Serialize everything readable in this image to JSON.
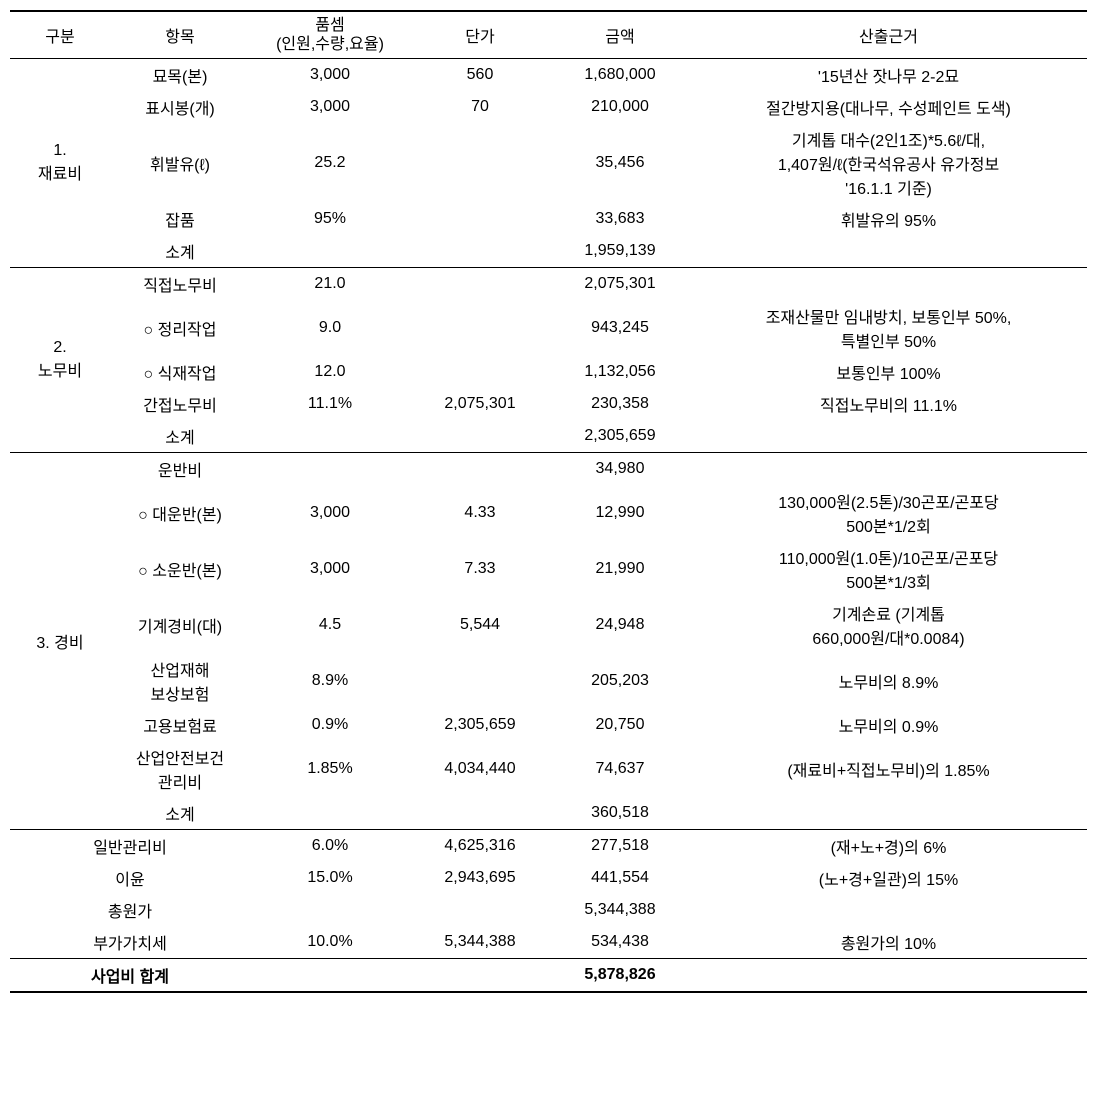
{
  "headers": {
    "category": "구분",
    "item": "항목",
    "qty_line1": "품셈",
    "qty_line2": "(인원,수량,요율)",
    "unit": "단가",
    "amount": "금액",
    "basis": "산출근거"
  },
  "sections": [
    {
      "categoryLabel": "1.\n재료비",
      "rows": [
        {
          "item": "묘목(본)",
          "qty": "3,000",
          "unit": "560",
          "amount": "1,680,000",
          "basis": "'15년산 잣나무 2-2묘"
        },
        {
          "item": "표시봉(개)",
          "qty": "3,000",
          "unit": "70",
          "amount": "210,000",
          "basis": "절간방지용(대나무, 수성페인트 도색)"
        },
        {
          "item": "휘발유(ℓ)",
          "qty": "25.2",
          "unit": "",
          "amount": "35,456",
          "basis": "기계톱 대수(2인1조)*5.6ℓ/대,\n1,407원/ℓ(한국석유공사 유가정보\n'16.1.1 기준)"
        },
        {
          "item": "잡품",
          "qty": "95%",
          "unit": "",
          "amount": "33,683",
          "basis": "휘발유의 95%"
        },
        {
          "item": "소계",
          "qty": "",
          "unit": "",
          "amount": "1,959,139",
          "basis": ""
        }
      ]
    },
    {
      "categoryLabel": "2.\n노무비",
      "rows": [
        {
          "item": "직접노무비",
          "qty": "21.0",
          "unit": "",
          "amount": "2,075,301",
          "basis": ""
        },
        {
          "item": "○ 정리작업",
          "qty": "9.0",
          "unit": "",
          "amount": "943,245",
          "basis": "조재산물만 임내방치, 보통인부 50%,\n특별인부 50%"
        },
        {
          "item": "○ 식재작업",
          "qty": "12.0",
          "unit": "",
          "amount": "1,132,056",
          "basis": "보통인부 100%"
        },
        {
          "item": "간접노무비",
          "qty": "11.1%",
          "unit": "2,075,301",
          "amount": "230,358",
          "basis": "직접노무비의 11.1%"
        },
        {
          "item": "소계",
          "qty": "",
          "unit": "",
          "amount": "2,305,659",
          "basis": ""
        }
      ]
    },
    {
      "categoryLabel": "3. 경비",
      "rows": [
        {
          "item": "운반비",
          "qty": "",
          "unit": "",
          "amount": "34,980",
          "basis": ""
        },
        {
          "item": "○ 대운반(본)",
          "qty": "3,000",
          "unit": "4.33",
          "amount": "12,990",
          "basis": "130,000원(2.5톤)/30곤포/곤포당\n500본*1/2회"
        },
        {
          "item": "○ 소운반(본)",
          "qty": "3,000",
          "unit": "7.33",
          "amount": "21,990",
          "basis": "110,000원(1.0톤)/10곤포/곤포당\n500본*1/3회"
        },
        {
          "item": "기계경비(대)",
          "qty": "4.5",
          "unit": "5,544",
          "amount": "24,948",
          "basis": "기계손료 (기계톱\n660,000원/대*0.0084)"
        },
        {
          "item": "산업재해\n보상보험",
          "qty": "8.9%",
          "unit": "2,305,659",
          "amount": "205,203",
          "basis": "노무비의 8.9%"
        },
        {
          "item": "고용보험료",
          "qty": "0.9%",
          "unit": "2,305,659",
          "amount": "20,750",
          "basis": "노무비의 0.9%"
        },
        {
          "item": "산업안전보건\n관리비",
          "qty": "1.85%",
          "unit": "4,034,440",
          "amount": "74,637",
          "basis": "(재료비+직접노무비)의 1.85%"
        },
        {
          "item": "소계",
          "qty": "",
          "unit": "",
          "amount": "360,518",
          "basis": ""
        }
      ]
    }
  ],
  "summaryRows": [
    {
      "item": "일반관리비",
      "qty": "6.0%",
      "unit": "4,625,316",
      "amount": "277,518",
      "basis": "(재+노+경)의 6%"
    },
    {
      "item": "이윤",
      "qty": "15.0%",
      "unit": "2,943,695",
      "amount": "441,554",
      "basis": "(노+경+일관)의 15%"
    },
    {
      "item": "총원가",
      "qty": "",
      "unit": "",
      "amount": "5,344,388",
      "basis": ""
    },
    {
      "item": "부가가치세",
      "qty": "10.0%",
      "unit": "5,344,388",
      "amount": "534,438",
      "basis": "총원가의 10%"
    }
  ],
  "totalRow": {
    "item": "사업비 합계",
    "qty": "",
    "unit": "",
    "amount": "5,878,826",
    "basis": ""
  },
  "style": {
    "baseFontSize": 16,
    "textColor": "#000000",
    "backgroundColor": "#ffffff",
    "borderThickColor": "#000000",
    "borderThinColor": "#000000"
  }
}
